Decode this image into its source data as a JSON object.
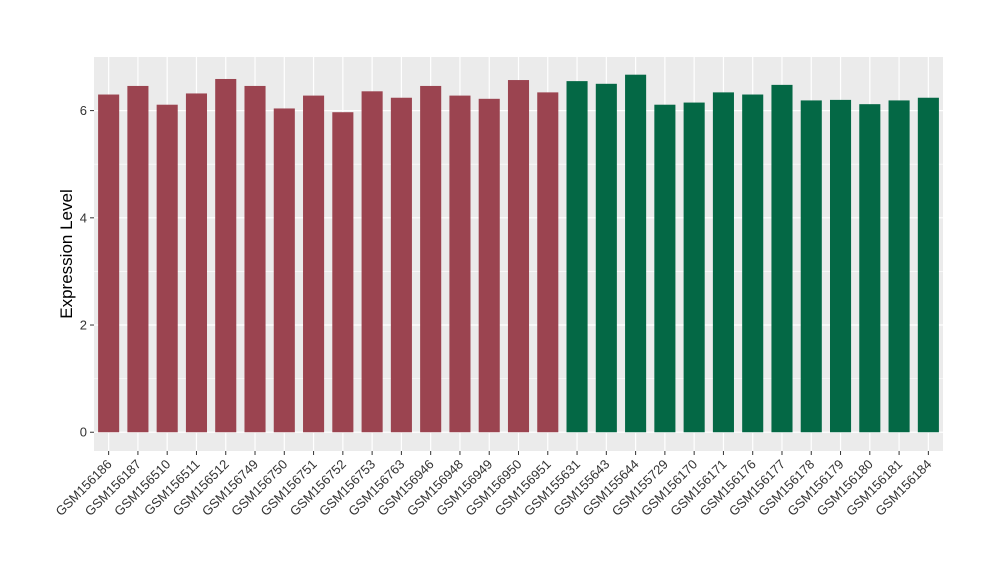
{
  "chart_data": {
    "type": "bar",
    "title": "",
    "xlabel": "",
    "ylabel": "Expression Level",
    "ylim": [
      -0.35,
      7.0
    ],
    "yticks": [
      0,
      2,
      4,
      6
    ],
    "grid": true,
    "categories": [
      "GSM156186",
      "GSM156187",
      "GSM156510",
      "GSM156511",
      "GSM156512",
      "GSM156749",
      "GSM156750",
      "GSM156751",
      "GSM156752",
      "GSM156753",
      "GSM156763",
      "GSM156946",
      "GSM156948",
      "GSM156949",
      "GSM156950",
      "GSM156951",
      "GSM155631",
      "GSM155643",
      "GSM155644",
      "GSM155729",
      "GSM156170",
      "GSM156171",
      "GSM156176",
      "GSM156177",
      "GSM156178",
      "GSM156179",
      "GSM156180",
      "GSM156181",
      "GSM156184"
    ],
    "values": [
      6.3,
      6.46,
      6.11,
      6.32,
      6.59,
      6.46,
      6.04,
      6.28,
      5.97,
      6.36,
      6.24,
      6.46,
      6.28,
      6.22,
      6.57,
      6.34,
      6.55,
      6.5,
      6.67,
      6.11,
      6.15,
      6.34,
      6.3,
      6.48,
      6.19,
      6.2,
      6.12,
      6.19,
      6.24
    ],
    "group_colors": [
      "#9B4450",
      "#9B4450",
      "#9B4450",
      "#9B4450",
      "#9B4450",
      "#9B4450",
      "#9B4450",
      "#9B4450",
      "#9B4450",
      "#9B4450",
      "#9B4450",
      "#9B4450",
      "#9B4450",
      "#9B4450",
      "#9B4450",
      "#9B4450",
      "#046845",
      "#046845",
      "#046845",
      "#046845",
      "#046845",
      "#046845",
      "#046845",
      "#046845",
      "#046845",
      "#046845",
      "#046845",
      "#046845",
      "#046845"
    ],
    "panel_background": "#EBEBEB",
    "grid_color": "#FFFFFF"
  }
}
